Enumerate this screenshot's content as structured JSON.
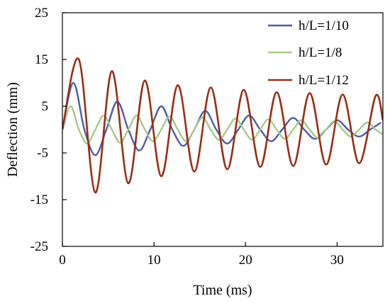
{
  "chart_data": {
    "type": "line",
    "xlabel": "Time (ms)",
    "ylabel": "Deflection (mm)",
    "xlim": [
      0,
      35
    ],
    "ylim": [
      -25,
      25
    ],
    "x_ticks": [
      0,
      10,
      20,
      30
    ],
    "y_ticks": [
      25,
      15,
      5,
      -5,
      -15,
      -25
    ],
    "grid": false,
    "legend_position": "top-right",
    "series": [
      {
        "name": "h/L=1/10",
        "color": "#4a5ea8",
        "x": [
          0,
          1.2,
          2.4,
          3.6,
          4.8,
          6.0,
          7.2,
          8.4,
          9.6,
          10.8,
          12.0,
          13.2,
          14.4,
          15.6,
          16.8,
          18.0,
          19.2,
          20.4,
          21.6,
          22.8,
          24.0,
          25.2,
          26.4,
          27.6,
          28.8,
          30.0,
          31.2,
          32.4,
          33.6,
          34.8
        ],
        "values": [
          0,
          10,
          0,
          -5.5,
          0,
          6,
          0,
          -4.5,
          0,
          5,
          0,
          -3.5,
          0,
          4,
          0,
          -3,
          0,
          3,
          0,
          -2.5,
          0,
          2.5,
          0,
          -2,
          0,
          2,
          0,
          -1.5,
          0,
          1.5
        ]
      },
      {
        "name": "h/L=1/8",
        "color": "#a6c98a",
        "x": [
          0,
          0.9,
          1.8,
          2.7,
          3.6,
          4.5,
          5.4,
          6.3,
          7.2,
          8.1,
          9.0,
          9.9,
          10.8,
          11.7,
          12.6,
          13.5,
          14.4,
          15.3,
          16.2,
          17.1,
          18.0,
          18.9,
          19.8,
          20.7,
          21.6,
          22.5,
          23.4,
          24.3,
          25.2,
          26.1,
          27.0,
          27.9,
          28.8,
          29.7,
          30.6,
          31.5,
          32.4,
          33.3,
          34.2,
          35.0
        ],
        "values": [
          0,
          5,
          0,
          -3,
          0,
          3,
          0,
          -2.8,
          0,
          3,
          0,
          -2.5,
          0,
          2.8,
          0,
          -2.5,
          0,
          2.6,
          0,
          -2.2,
          0,
          2.4,
          0,
          -2.2,
          0,
          2.2,
          0,
          -2,
          0,
          2,
          0,
          -1.8,
          0,
          1.8,
          0,
          -1.5,
          0,
          1.5,
          0,
          -1
        ]
      },
      {
        "name": "h/L=1/12",
        "color": "#9b2d16",
        "x": [
          0,
          1.8,
          3.6,
          5.4,
          7.2,
          9.0,
          10.8,
          12.6,
          14.4,
          16.2,
          18.0,
          19.8,
          21.6,
          23.4,
          25.2,
          27.0,
          28.8,
          30.6,
          32.4,
          34.2,
          35.0
        ],
        "values": [
          0,
          15,
          -13.5,
          12.5,
          -11.5,
          10.5,
          -10,
          9.5,
          -9,
          9,
          -8.5,
          8.5,
          -8,
          8,
          -7.8,
          7.8,
          -7.5,
          7.5,
          -7.2,
          7.2,
          2
        ]
      }
    ]
  }
}
